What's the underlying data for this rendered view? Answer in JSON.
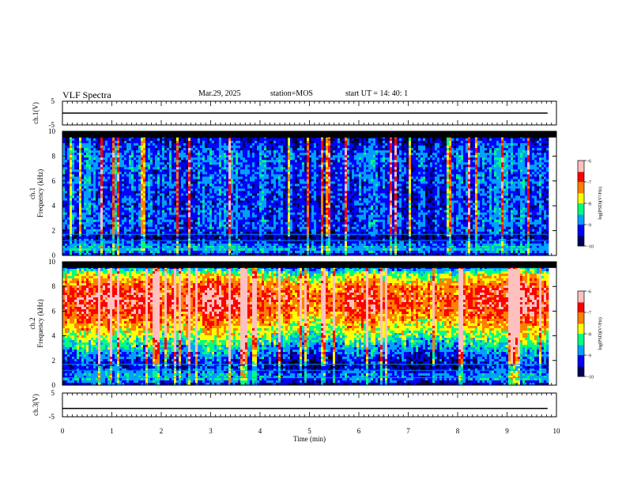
{
  "header": {
    "title": "VLF Spectra",
    "date": "Mar.29, 2025",
    "station": "station=MOS",
    "start": "start UT =   14: 40: 1"
  },
  "colors": {
    "palette": [
      "#000060",
      "#0000ff",
      "#00a0ff",
      "#00ff80",
      "#ffff00",
      "#ff8000",
      "#ff0000",
      "#ffc0c0"
    ],
    "frame": "#000000",
    "background": "#000000"
  },
  "chart_data": [
    {
      "type": "line",
      "panel": "ch1-voltage",
      "ylabel": "ch.1(V)",
      "ylim": [
        -5,
        5
      ],
      "yticks": [
        "5",
        "-5"
      ],
      "x": [
        0,
        9.82
      ],
      "y": [
        0,
        0
      ]
    },
    {
      "type": "heatmap",
      "panel": "ch1-spectrogram",
      "ylabel": "ch.1\nFrequency (kHz)",
      "ylim": [
        0,
        10
      ],
      "yticks": [
        "0",
        "2",
        "4",
        "6",
        "8",
        "10"
      ],
      "colorbar": {
        "label": "log(PSD)(V²/Hz)",
        "range": [
          -10,
          -6
        ],
        "ticks": [
          "-6",
          "-7",
          "-8",
          "-9",
          "-10"
        ]
      },
      "x_range": [
        0,
        9.82
      ],
      "freq_profile": [
        [
          0.0,
          -9.6
        ],
        [
          0.5,
          -8.6
        ],
        [
          1.0,
          -9.2
        ],
        [
          1.5,
          -9.7
        ],
        [
          2.0,
          -9.3
        ],
        [
          3.0,
          -9.2
        ],
        [
          4.0,
          -9.3
        ],
        [
          5.0,
          -9.3
        ],
        [
          6.0,
          -9.2
        ],
        [
          7.0,
          -9.2
        ],
        [
          8.0,
          -9.1
        ],
        [
          9.0,
          -9.4
        ],
        [
          9.5,
          -9.7
        ],
        [
          10.0,
          -10.0
        ]
      ]
    },
    {
      "type": "heatmap",
      "panel": "ch2-spectrogram",
      "ylabel": "ch.2\nFrequency (kHz)",
      "ylim": [
        0,
        10
      ],
      "yticks": [
        "0",
        "2",
        "4",
        "6",
        "8",
        "10"
      ],
      "colorbar": {
        "label": "log(PSD)(V²/Hz)",
        "range": [
          -10,
          -6
        ],
        "ticks": [
          "-6",
          "-7",
          "-8",
          "-9",
          "-10"
        ]
      },
      "x_range": [
        0,
        9.82
      ],
      "freq_profile": [
        [
          0.0,
          -9.6
        ],
        [
          0.5,
          -8.9
        ],
        [
          1.0,
          -9.0
        ],
        [
          1.5,
          -9.6
        ],
        [
          2.0,
          -9.4
        ],
        [
          3.0,
          -8.8
        ],
        [
          4.0,
          -8.2
        ],
        [
          5.0,
          -7.6
        ],
        [
          6.0,
          -7.1
        ],
        [
          7.0,
          -6.9
        ],
        [
          8.0,
          -7.2
        ],
        [
          9.0,
          -8.1
        ],
        [
          9.5,
          -9.0
        ],
        [
          10.0,
          -9.8
        ]
      ]
    },
    {
      "type": "line",
      "panel": "ch3-voltage",
      "ylabel": "ch.3(V)",
      "ylim": [
        -5,
        5
      ],
      "yticks": [
        "5",
        "-5"
      ],
      "x": [
        0,
        9.82
      ],
      "y": [
        -1.5,
        -1.5
      ]
    }
  ],
  "xaxis": {
    "label": "Time (min)",
    "range": [
      0,
      10
    ],
    "ticks": [
      "0",
      "1",
      "2",
      "3",
      "4",
      "5",
      "6",
      "7",
      "8",
      "9",
      "10"
    ]
  }
}
